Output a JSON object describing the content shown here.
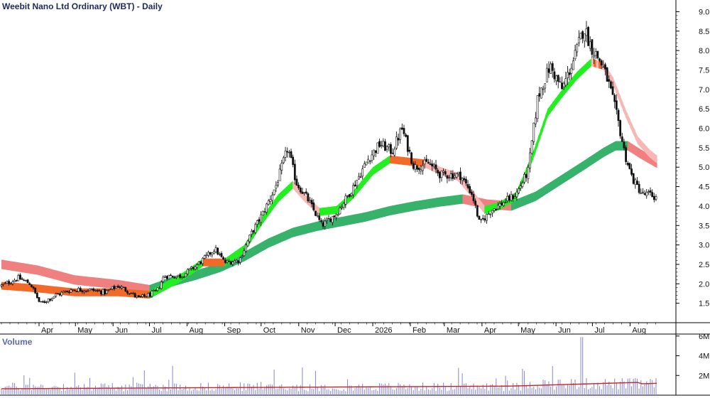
{
  "chart_data": [
    {
      "type": "candlestick",
      "title": "Weebit Nano Ltd Ordinary (WBT) - Daily",
      "yticks": [
        "9.0",
        "8.5",
        "8.0",
        "7.5",
        "7.0",
        "6.5",
        "6.0",
        "5.5",
        "5.0",
        "4.5",
        "4.0",
        "3.5",
        "3.0",
        "2.5",
        "2.0",
        "1.5"
      ],
      "ytick_values": [
        9.0,
        8.5,
        8.0,
        7.5,
        7.0,
        6.5,
        6.0,
        5.5,
        5.0,
        4.5,
        4.0,
        3.5,
        3.0,
        2.5,
        2.0,
        1.5
      ],
      "ylim": [
        1.0,
        9.3
      ],
      "xticks": [
        "Apr",
        "May",
        "Jun",
        "Jul",
        "Aug",
        "Sep",
        "Oct",
        "Nov",
        "Dec",
        "2026",
        "Feb",
        "Mar",
        "Apr",
        "May",
        "Jun",
        "Jul",
        "Aug"
      ],
      "xtick_days": [
        31,
        61,
        92,
        122,
        153,
        184,
        214,
        245,
        275,
        306,
        337,
        365,
        396,
        426,
        457,
        487,
        518
      ],
      "day_range": [
        0,
        540
      ],
      "price_path": [
        [
          0,
          1.95
        ],
        [
          14,
          2.15
        ],
        [
          24,
          2.0
        ],
        [
          32,
          1.48
        ],
        [
          44,
          1.7
        ],
        [
          58,
          1.85
        ],
        [
          72,
          1.85
        ],
        [
          86,
          1.78
        ],
        [
          96,
          1.95
        ],
        [
          104,
          1.82
        ],
        [
          113,
          1.62
        ],
        [
          122,
          1.72
        ],
        [
          128,
          1.8
        ],
        [
          134,
          2.2
        ],
        [
          148,
          2.2
        ],
        [
          160,
          2.45
        ],
        [
          176,
          2.9
        ],
        [
          184,
          2.55
        ],
        [
          196,
          2.6
        ],
        [
          206,
          3.3
        ],
        [
          216,
          3.85
        ],
        [
          226,
          4.5
        ],
        [
          236,
          5.5
        ],
        [
          243,
          4.6
        ],
        [
          252,
          4.2
        ],
        [
          264,
          3.5
        ],
        [
          276,
          3.8
        ],
        [
          290,
          4.5
        ],
        [
          302,
          5.2
        ],
        [
          312,
          5.6
        ],
        [
          322,
          5.4
        ],
        [
          330,
          6.0
        ],
        [
          340,
          5.0
        ],
        [
          352,
          5.1
        ],
        [
          362,
          4.8
        ],
        [
          378,
          4.8
        ],
        [
          388,
          4.3
        ],
        [
          394,
          3.55
        ],
        [
          404,
          3.9
        ],
        [
          414,
          4.1
        ],
        [
          424,
          4.3
        ],
        [
          434,
          4.9
        ],
        [
          442,
          6.8
        ],
        [
          452,
          7.6
        ],
        [
          462,
          7.0
        ],
        [
          472,
          7.8
        ],
        [
          480,
          8.6
        ],
        [
          486,
          8.1
        ],
        [
          494,
          7.7
        ],
        [
          500,
          7.2
        ],
        [
          508,
          6.2
        ],
        [
          514,
          5.3
        ],
        [
          520,
          4.7
        ],
        [
          528,
          4.3
        ],
        [
          534,
          4.3
        ],
        [
          540,
          4.2
        ]
      ],
      "bands": {
        "short_ema": [
          [
            0,
            1.95
          ],
          [
            30,
            1.88
          ],
          [
            60,
            1.78
          ],
          [
            96,
            1.78
          ],
          [
            122,
            1.72
          ],
          [
            134,
            1.92
          ],
          [
            150,
            2.2
          ],
          [
            166,
            2.55
          ],
          [
            184,
            2.55
          ],
          [
            200,
            2.9
          ],
          [
            214,
            3.6
          ],
          [
            228,
            4.2
          ],
          [
            240,
            4.55
          ],
          [
            250,
            4.2
          ],
          [
            262,
            3.85
          ],
          [
            276,
            3.9
          ],
          [
            290,
            4.3
          ],
          [
            306,
            4.9
          ],
          [
            320,
            5.2
          ],
          [
            334,
            5.15
          ],
          [
            348,
            5.1
          ],
          [
            362,
            4.9
          ],
          [
            376,
            4.75
          ],
          [
            388,
            4.3
          ],
          [
            398,
            3.9
          ],
          [
            410,
            4.0
          ],
          [
            424,
            4.25
          ],
          [
            438,
            5.3
          ],
          [
            450,
            6.4
          ],
          [
            462,
            6.9
          ],
          [
            474,
            7.35
          ],
          [
            486,
            7.7
          ],
          [
            496,
            7.6
          ],
          [
            504,
            7.2
          ],
          [
            514,
            6.4
          ],
          [
            524,
            5.7
          ],
          [
            534,
            5.35
          ],
          [
            540,
            5.2
          ]
        ],
        "long_ema": [
          [
            0,
            2.5
          ],
          [
            30,
            2.35
          ],
          [
            60,
            2.1
          ],
          [
            96,
            1.98
          ],
          [
            122,
            1.85
          ],
          [
            140,
            2.05
          ],
          [
            160,
            2.22
          ],
          [
            180,
            2.42
          ],
          [
            200,
            2.7
          ],
          [
            220,
            3.05
          ],
          [
            240,
            3.32
          ],
          [
            260,
            3.48
          ],
          [
            280,
            3.6
          ],
          [
            300,
            3.72
          ],
          [
            320,
            3.88
          ],
          [
            340,
            4.0
          ],
          [
            360,
            4.1
          ],
          [
            380,
            4.18
          ],
          [
            400,
            4.05
          ],
          [
            420,
            4.0
          ],
          [
            440,
            4.25
          ],
          [
            460,
            4.65
          ],
          [
            480,
            5.05
          ],
          [
            496,
            5.38
          ],
          [
            506,
            5.55
          ],
          [
            516,
            5.55
          ],
          [
            526,
            5.35
          ],
          [
            540,
            5.1
          ]
        ]
      },
      "colors": {
        "short_up": "#22ee22",
        "short_down": "#f26a2a",
        "short_down_light": "#f7b7b5",
        "long_up": "#36b26b",
        "long_down": "#f08080",
        "ma_line": "#cc2222",
        "volume_bar": "#9090d8"
      }
    },
    {
      "type": "bar",
      "title": "Volume",
      "yticks": [
        "6M",
        "4M",
        "2M"
      ],
      "ytick_values": [
        6,
        4,
        2
      ],
      "ylim": [
        0,
        6.2
      ],
      "unit": "M"
    }
  ]
}
